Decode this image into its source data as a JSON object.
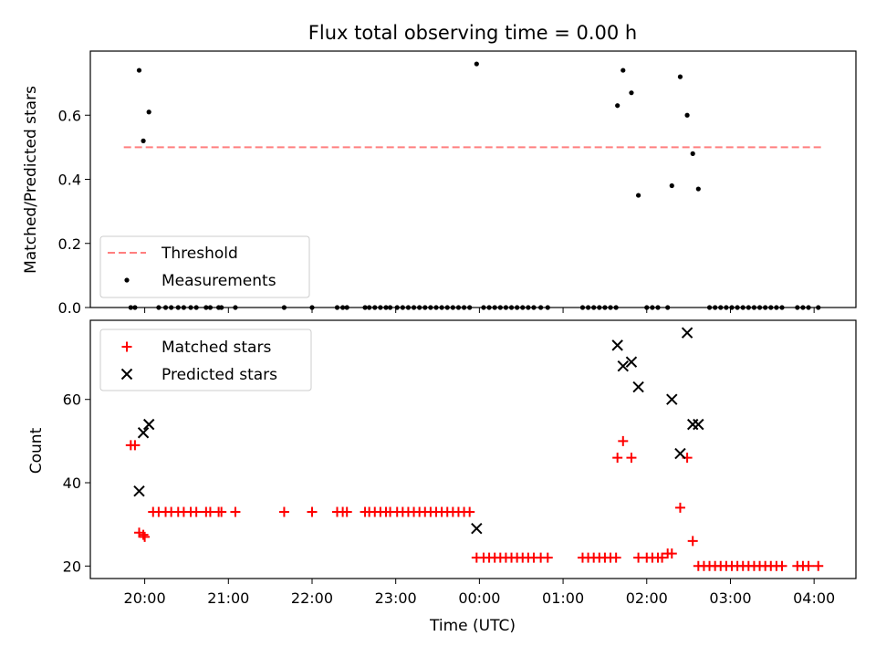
{
  "chart_data": [
    {
      "type": "scatter",
      "title": "Flux total observing time = 0.00 h",
      "xlabel": "",
      "ylabel": "Matched/Predicted stars",
      "xlim": [
        "19:21",
        "04:30"
      ],
      "ylim": [
        0,
        0.8
      ],
      "yticks": [
        0.0,
        0.2,
        0.4,
        0.6
      ],
      "ytick_labels": [
        "0.0",
        "0.2",
        "0.4",
        "0.6"
      ],
      "legend": "lower-left",
      "threshold": {
        "name": "Threshold",
        "y": 0.5,
        "x": [
          "19:45",
          "04:05"
        ],
        "color": "#ff7f7f",
        "style": "dashed"
      },
      "measurements": {
        "name": "Measurements",
        "color": "#000000",
        "points": [
          [
            "19:50",
            0
          ],
          [
            "19:53",
            0
          ],
          [
            "19:56",
            0.74
          ],
          [
            "19:59",
            0.52
          ],
          [
            "20:03",
            0.61
          ],
          [
            "20:10",
            0
          ],
          [
            "20:15",
            0
          ],
          [
            "20:19",
            0
          ],
          [
            "20:24",
            0
          ],
          [
            "20:28",
            0
          ],
          [
            "20:33",
            0
          ],
          [
            "20:37",
            0
          ],
          [
            "20:44",
            0
          ],
          [
            "20:47",
            0
          ],
          [
            "20:53",
            0
          ],
          [
            "20:55",
            0
          ],
          [
            "21:05",
            0
          ],
          [
            "21:40",
            0
          ],
          [
            "22:00",
            0
          ],
          [
            "22:18",
            0
          ],
          [
            "22:22",
            0
          ],
          [
            "22:25",
            0
          ],
          [
            "22:38",
            0
          ],
          [
            "22:41",
            0
          ],
          [
            "22:45",
            0
          ],
          [
            "22:49",
            0
          ],
          [
            "22:53",
            0
          ],
          [
            "22:56",
            0
          ],
          [
            "23:01",
            0
          ],
          [
            "23:05",
            0
          ],
          [
            "23:09",
            0
          ],
          [
            "23:13",
            0
          ],
          [
            "23:17",
            0
          ],
          [
            "23:21",
            0
          ],
          [
            "23:25",
            0
          ],
          [
            "23:29",
            0
          ],
          [
            "23:33",
            0
          ],
          [
            "23:37",
            0
          ],
          [
            "23:41",
            0
          ],
          [
            "23:45",
            0
          ],
          [
            "23:49",
            0
          ],
          [
            "23:53",
            0
          ],
          [
            "23:58",
            0.76
          ],
          [
            "00:03",
            0
          ],
          [
            "00:07",
            0
          ],
          [
            "00:11",
            0
          ],
          [
            "00:15",
            0
          ],
          [
            "00:19",
            0
          ],
          [
            "00:23",
            0
          ],
          [
            "00:27",
            0
          ],
          [
            "00:31",
            0
          ],
          [
            "00:35",
            0
          ],
          [
            "00:39",
            0
          ],
          [
            "00:44",
            0
          ],
          [
            "00:49",
            0
          ],
          [
            "01:14",
            0
          ],
          [
            "01:18",
            0
          ],
          [
            "01:22",
            0
          ],
          [
            "01:26",
            0
          ],
          [
            "01:30",
            0
          ],
          [
            "01:34",
            0
          ],
          [
            "01:38",
            0
          ],
          [
            "01:39",
            0.63
          ],
          [
            "01:43",
            0.74
          ],
          [
            "01:49",
            0.67
          ],
          [
            "01:54",
            0.35
          ],
          [
            "02:00",
            0
          ],
          [
            "02:04",
            0
          ],
          [
            "02:08",
            0
          ],
          [
            "02:15",
            0
          ],
          [
            "02:18",
            0.38
          ],
          [
            "02:24",
            0.72
          ],
          [
            "02:29",
            0.6
          ],
          [
            "02:33",
            0.48
          ],
          [
            "02:37",
            0.37
          ],
          [
            "02:45",
            0
          ],
          [
            "02:49",
            0
          ],
          [
            "02:53",
            0
          ],
          [
            "02:57",
            0
          ],
          [
            "03:01",
            0
          ],
          [
            "03:05",
            0
          ],
          [
            "03:09",
            0
          ],
          [
            "03:13",
            0
          ],
          [
            "03:17",
            0
          ],
          [
            "03:21",
            0
          ],
          [
            "03:25",
            0
          ],
          [
            "03:29",
            0
          ],
          [
            "03:33",
            0
          ],
          [
            "03:37",
            0
          ],
          [
            "03:48",
            0
          ],
          [
            "03:52",
            0
          ],
          [
            "03:56",
            0
          ],
          [
            "04:03",
            0
          ]
        ]
      }
    },
    {
      "type": "scatter",
      "xlabel": "Time (UTC)",
      "ylabel": "Count",
      "xlim": [
        "19:21",
        "04:30"
      ],
      "ylim": [
        17,
        79
      ],
      "xticks": [
        "20:00",
        "21:00",
        "22:00",
        "23:00",
        "00:00",
        "01:00",
        "02:00",
        "03:00",
        "04:00"
      ],
      "yticks": [
        20,
        40,
        60
      ],
      "ytick_labels": [
        "20",
        "40",
        "60"
      ],
      "legend": "top-left",
      "series": [
        {
          "name": "Matched stars",
          "marker": "plus",
          "color": "#ff0000",
          "points": [
            [
              "19:50",
              49
            ],
            [
              "19:53",
              49
            ],
            [
              "19:56",
              28
            ],
            [
              "19:59",
              27.5
            ],
            [
              "20:00",
              27
            ],
            [
              "20:06",
              33
            ],
            [
              "20:10",
              33
            ],
            [
              "20:15",
              33
            ],
            [
              "20:19",
              33
            ],
            [
              "20:24",
              33
            ],
            [
              "20:28",
              33
            ],
            [
              "20:33",
              33
            ],
            [
              "20:37",
              33
            ],
            [
              "20:44",
              33
            ],
            [
              "20:47",
              33
            ],
            [
              "20:53",
              33
            ],
            [
              "20:55",
              33
            ],
            [
              "21:05",
              33
            ],
            [
              "21:40",
              33
            ],
            [
              "22:00",
              33
            ],
            [
              "22:18",
              33
            ],
            [
              "22:22",
              33
            ],
            [
              "22:25",
              33
            ],
            [
              "22:38",
              33
            ],
            [
              "22:41",
              33
            ],
            [
              "22:45",
              33
            ],
            [
              "22:49",
              33
            ],
            [
              "22:53",
              33
            ],
            [
              "22:56",
              33
            ],
            [
              "23:01",
              33
            ],
            [
              "23:05",
              33
            ],
            [
              "23:09",
              33
            ],
            [
              "23:13",
              33
            ],
            [
              "23:17",
              33
            ],
            [
              "23:21",
              33
            ],
            [
              "23:25",
              33
            ],
            [
              "23:29",
              33
            ],
            [
              "23:33",
              33
            ],
            [
              "23:37",
              33
            ],
            [
              "23:41",
              33
            ],
            [
              "23:45",
              33
            ],
            [
              "23:49",
              33
            ],
            [
              "23:53",
              33
            ],
            [
              "23:58",
              22
            ],
            [
              "00:03",
              22
            ],
            [
              "00:07",
              22
            ],
            [
              "00:11",
              22
            ],
            [
              "00:15",
              22
            ],
            [
              "00:19",
              22
            ],
            [
              "00:23",
              22
            ],
            [
              "00:27",
              22
            ],
            [
              "00:31",
              22
            ],
            [
              "00:35",
              22
            ],
            [
              "00:39",
              22
            ],
            [
              "00:44",
              22
            ],
            [
              "00:49",
              22
            ],
            [
              "01:14",
              22
            ],
            [
              "01:18",
              22
            ],
            [
              "01:22",
              22
            ],
            [
              "01:26",
              22
            ],
            [
              "01:30",
              22
            ],
            [
              "01:34",
              22
            ],
            [
              "01:38",
              22
            ],
            [
              "01:39",
              46
            ],
            [
              "01:43",
              50
            ],
            [
              "01:49",
              46
            ],
            [
              "01:54",
              22
            ],
            [
              "02:00",
              22
            ],
            [
              "02:04",
              22
            ],
            [
              "02:08",
              22
            ],
            [
              "02:11",
              22
            ],
            [
              "02:15",
              23
            ],
            [
              "02:18",
              23
            ],
            [
              "02:24",
              34
            ],
            [
              "02:29",
              46
            ],
            [
              "02:33",
              26
            ],
            [
              "02:37",
              20
            ],
            [
              "02:41",
              20
            ],
            [
              "02:45",
              20
            ],
            [
              "02:49",
              20
            ],
            [
              "02:53",
              20
            ],
            [
              "02:57",
              20
            ],
            [
              "03:01",
              20
            ],
            [
              "03:05",
              20
            ],
            [
              "03:09",
              20
            ],
            [
              "03:13",
              20
            ],
            [
              "03:17",
              20
            ],
            [
              "03:21",
              20
            ],
            [
              "03:25",
              20
            ],
            [
              "03:29",
              20
            ],
            [
              "03:33",
              20
            ],
            [
              "03:37",
              20
            ],
            [
              "03:48",
              20
            ],
            [
              "03:52",
              20
            ],
            [
              "03:56",
              20
            ],
            [
              "04:03",
              20
            ]
          ]
        },
        {
          "name": "Predicted stars",
          "marker": "x",
          "color": "#000000",
          "points": [
            [
              "19:56",
              38
            ],
            [
              "19:59",
              52
            ],
            [
              "20:03",
              54
            ],
            [
              "23:58",
              29
            ],
            [
              "01:39",
              73
            ],
            [
              "01:43",
              68
            ],
            [
              "01:49",
              69
            ],
            [
              "01:54",
              63
            ],
            [
              "02:18",
              60
            ],
            [
              "02:24",
              47
            ],
            [
              "02:29",
              76
            ],
            [
              "02:33",
              54
            ],
            [
              "02:37",
              54
            ]
          ]
        }
      ]
    }
  ]
}
